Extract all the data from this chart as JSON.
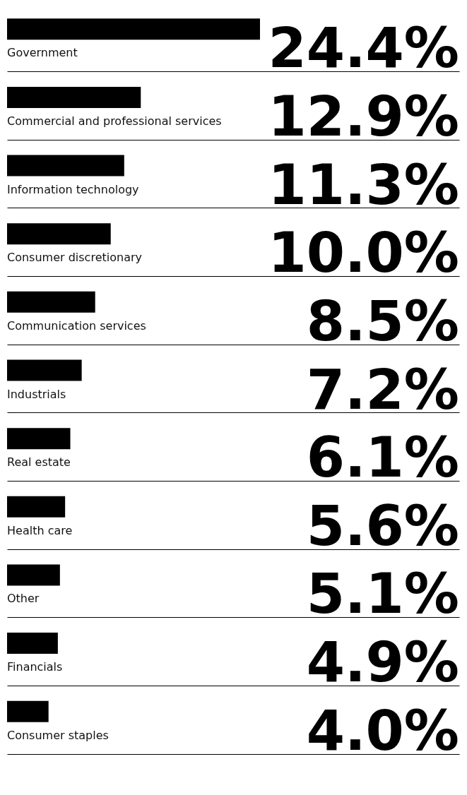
{
  "chart_data": {
    "type": "bar",
    "orientation": "horizontal",
    "categories": [
      "Government",
      "Commercial and professional services",
      "Information technology",
      "Consumer discretionary",
      "Communication services",
      "Industrials",
      "Real estate",
      "Health care",
      "Other",
      "Financials",
      "Consumer staples"
    ],
    "values": [
      24.4,
      12.9,
      11.3,
      10.0,
      8.5,
      7.2,
      6.1,
      5.6,
      5.1,
      4.9,
      4.0
    ],
    "value_labels": [
      "24.4%",
      "12.9%",
      "11.3%",
      "10.0%",
      "8.5%",
      "7.2%",
      "6.1%",
      "5.6%",
      "5.1%",
      "4.9%",
      "4.0%"
    ],
    "color": "#000000",
    "grid": "y"
  }
}
